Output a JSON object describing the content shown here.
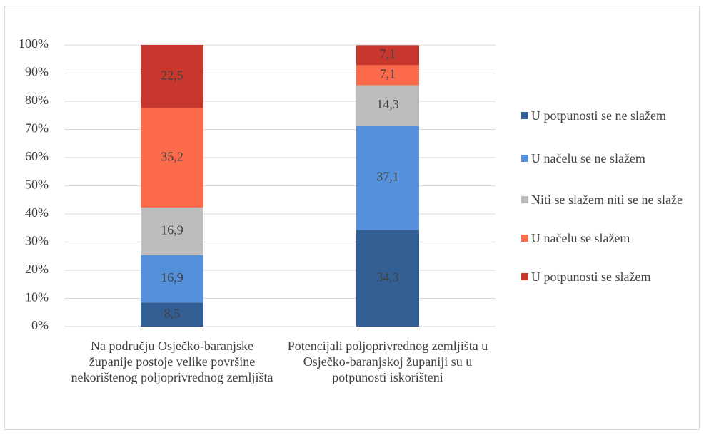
{
  "chart_data": {
    "type": "stacked_bar",
    "categories": [
      "Na području Osječko-baranjske županije postoje velike površine nekorištenog poljoprivrednog zemljišta",
      "Potencijali poljoprivrednog zemljišta u Osječko-baranjskoj županiji su u potpunosti iskorišteni"
    ],
    "series": [
      {
        "name": "U potpunosti se ne slažem",
        "color": "#335f94",
        "values": [
          8.5,
          34.3
        ],
        "value_labels": [
          "8,5",
          "34,3"
        ]
      },
      {
        "name": "U načelu se ne slažem",
        "color": "#5590da",
        "values": [
          16.9,
          37.1
        ],
        "value_labels": [
          "16,9",
          "37,1"
        ]
      },
      {
        "name": "Niti se slažem niti se ne slaže",
        "color": "#bdbdbd",
        "values": [
          16.9,
          14.3
        ],
        "value_labels": [
          "16,9",
          "14,3"
        ]
      },
      {
        "name": "U načelu se slažem",
        "color": "#fb6a4a",
        "values": [
          35.2,
          7.1
        ],
        "value_labels": [
          "35,2",
          "7,1"
        ]
      },
      {
        "name": "U potpunosti se slažem",
        "color": "#c8372d",
        "values": [
          22.5,
          7.1
        ],
        "value_labels": [
          "22,5",
          "7,1"
        ]
      }
    ],
    "ylim": [
      0,
      100
    ],
    "yticks": [
      {
        "value": 0,
        "label": "0%"
      },
      {
        "value": 10,
        "label": "10%"
      },
      {
        "value": 20,
        "label": "20%"
      },
      {
        "value": 30,
        "label": "30%"
      },
      {
        "value": 40,
        "label": "40%"
      },
      {
        "value": 50,
        "label": "50%"
      },
      {
        "value": 60,
        "label": "60%"
      },
      {
        "value": 70,
        "label": "70%"
      },
      {
        "value": 80,
        "label": "80%"
      },
      {
        "value": 90,
        "label": "90%"
      },
      {
        "value": 100,
        "label": "100%"
      }
    ],
    "grid": true,
    "legend": "right"
  }
}
